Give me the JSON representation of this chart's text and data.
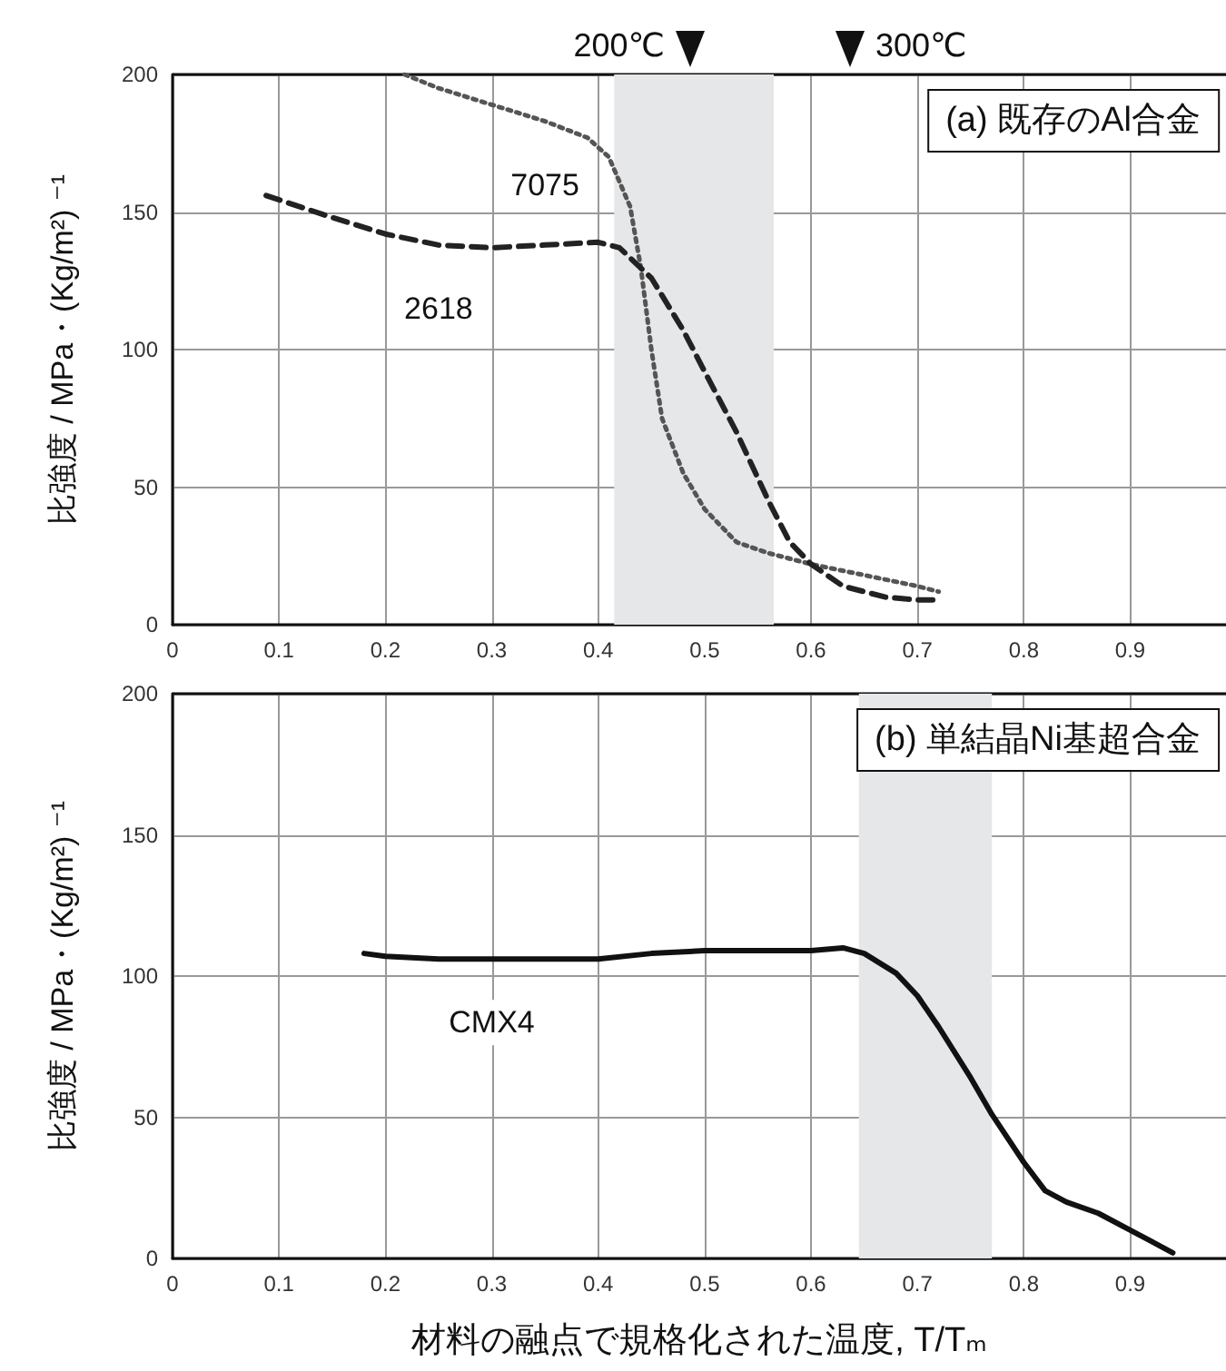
{
  "chart_data": [
    {
      "type": "line",
      "title": "(a) 既存のAl合金",
      "ylabel": "比強度 / MPa・(Kg/m²) ⁻¹",
      "xlim": [
        0,
        0.99
      ],
      "ylim": [
        0,
        200
      ],
      "xticks": [
        0,
        0.1,
        0.2,
        0.3,
        0.4,
        0.5,
        0.6,
        0.7,
        0.8,
        0.9
      ],
      "yticks": [
        0,
        50,
        100,
        150,
        200
      ],
      "grid": true,
      "legend": false,
      "marker": "none",
      "series": [
        {
          "name": "7075",
          "color": "#555555",
          "line_style": "dotted",
          "x": [
            0.218,
            0.25,
            0.3,
            0.35,
            0.39,
            0.41,
            0.43,
            0.44,
            0.45,
            0.46,
            0.48,
            0.5,
            0.53,
            0.56,
            0.6,
            0.65,
            0.7,
            0.72
          ],
          "values": [
            200,
            195,
            189,
            183,
            177,
            170,
            152,
            130,
            100,
            75,
            55,
            42,
            30,
            26,
            22,
            18,
            14,
            12
          ]
        },
        {
          "name": "2618",
          "color": "#222222",
          "line_style": "dashed",
          "x": [
            0.088,
            0.15,
            0.2,
            0.25,
            0.3,
            0.35,
            0.4,
            0.42,
            0.45,
            0.48,
            0.5,
            0.53,
            0.56,
            0.58,
            0.6,
            0.63,
            0.67,
            0.7,
            0.72
          ],
          "values": [
            156,
            148,
            142,
            138,
            137,
            138,
            139,
            137,
            126,
            107,
            92,
            70,
            45,
            30,
            22,
            14,
            10,
            9,
            9
          ]
        }
      ],
      "bands": [
        {
          "axis": "x",
          "from": 0.415,
          "to": 0.565,
          "color": "#e6e7e9"
        }
      ],
      "annotations": [
        "200℃",
        "300℃"
      ]
    },
    {
      "type": "line",
      "title": "(b) 単結晶Ni基超合金",
      "xlabel": "材料の融点で規格化された温度, T/Tₘ",
      "ylabel": "比強度 / MPa・(Kg/m²) ⁻¹",
      "xlim": [
        0,
        0.99
      ],
      "ylim": [
        0,
        200
      ],
      "xticks": [
        0,
        0.1,
        0.2,
        0.3,
        0.4,
        0.5,
        0.6,
        0.7,
        0.8,
        0.9
      ],
      "yticks": [
        0,
        50,
        100,
        150,
        200
      ],
      "grid": true,
      "legend": false,
      "marker": "none",
      "series": [
        {
          "name": "CMX4",
          "color": "#111111",
          "line_style": "solid",
          "x": [
            0.18,
            0.2,
            0.25,
            0.3,
            0.35,
            0.4,
            0.45,
            0.5,
            0.55,
            0.6,
            0.63,
            0.65,
            0.68,
            0.7,
            0.72,
            0.75,
            0.77,
            0.8,
            0.82,
            0.84,
            0.87,
            0.9,
            0.94
          ],
          "values": [
            108,
            107,
            106,
            106,
            106,
            106,
            108,
            109,
            109,
            109,
            110,
            108,
            101,
            93,
            82,
            64,
            51,
            34,
            24,
            20,
            16,
            10,
            2
          ]
        }
      ],
      "bands": [
        {
          "axis": "x",
          "from": 0.645,
          "to": 0.77,
          "color": "#e6e7e9"
        }
      ]
    }
  ]
}
